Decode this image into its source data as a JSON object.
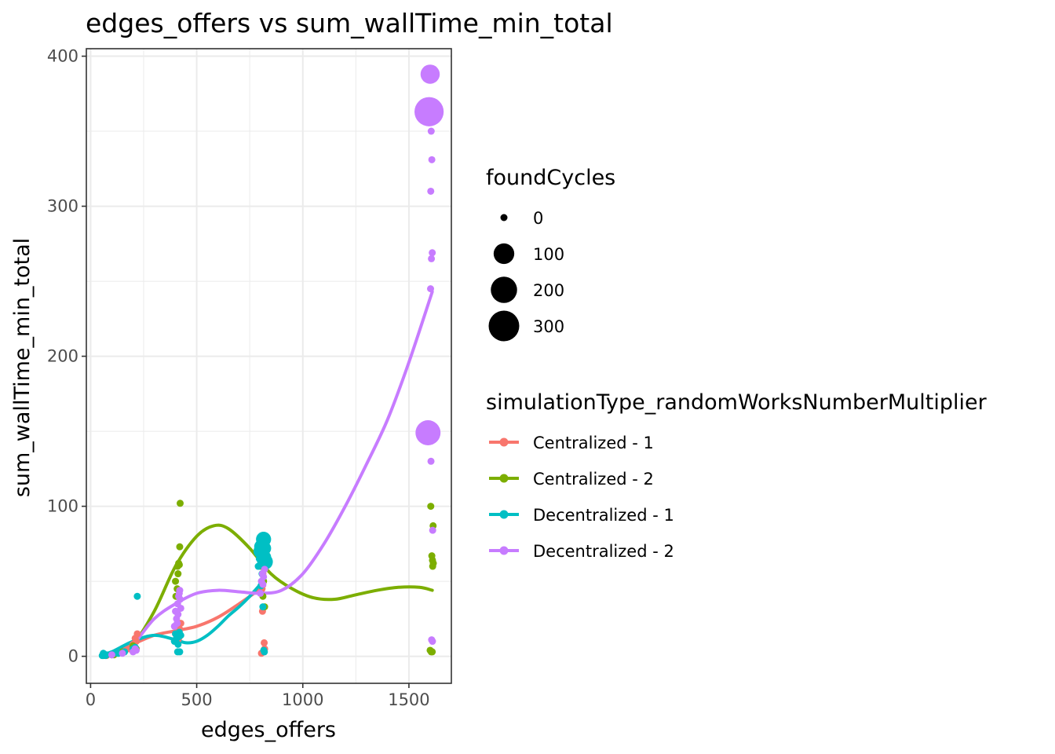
{
  "chart_data": {
    "type": "scatter",
    "title": "edges_offers  vs  sum_wallTime_min_total",
    "xlabel": "edges_offers",
    "ylabel": "sum_wallTime_min_total",
    "xlim": [
      -20,
      1700
    ],
    "ylim": [
      -18,
      405
    ],
    "x_ticks": [
      0,
      500,
      1000,
      1500
    ],
    "y_ticks": [
      0,
      100,
      200,
      300,
      400
    ],
    "grid": true,
    "legend_position": "right",
    "size_legend": {
      "title": "foundCycles",
      "entries": [
        {
          "label": "0",
          "value": 0
        },
        {
          "label": "100",
          "value": 100
        },
        {
          "label": "200",
          "value": 200
        },
        {
          "label": "300",
          "value": 300
        }
      ]
    },
    "color_legend": {
      "title": "simulationType_randomWorksNumberMultiplier"
    },
    "series": [
      {
        "name": "Centralized - 1",
        "color": "#F8766D",
        "points": [
          [
            60,
            1,
            0
          ],
          [
            75,
            0.5,
            0
          ],
          [
            100,
            1,
            0
          ],
          [
            130,
            2,
            0
          ],
          [
            150,
            3,
            0
          ],
          [
            180,
            5,
            0
          ],
          [
            200,
            8,
            0
          ],
          [
            210,
            12,
            0
          ],
          [
            220,
            15,
            0
          ],
          [
            215,
            10,
            0
          ],
          [
            400,
            15,
            0
          ],
          [
            410,
            20,
            0
          ],
          [
            420,
            18,
            0
          ],
          [
            415,
            12,
            0
          ],
          [
            425,
            22,
            0
          ],
          [
            410,
            10,
            0
          ],
          [
            800,
            60,
            0
          ],
          [
            810,
            30,
            0
          ],
          [
            815,
            3,
            0
          ],
          [
            820,
            5,
            0
          ],
          [
            818,
            9,
            0
          ],
          [
            805,
            2,
            0
          ],
          [
            812,
            55,
            0
          ],
          [
            808,
            45,
            0
          ]
        ],
        "smooth": [
          [
            100,
            1
          ],
          [
            200,
            8
          ],
          [
            300,
            14
          ],
          [
            400,
            17
          ],
          [
            500,
            20
          ],
          [
            600,
            26
          ],
          [
            700,
            35
          ],
          [
            800,
            45
          ],
          [
            820,
            47
          ]
        ]
      },
      {
        "name": "Centralized - 2",
        "color": "#7CAE00",
        "points": [
          [
            60,
            0.5,
            0
          ],
          [
            110,
            1,
            0
          ],
          [
            150,
            3,
            0
          ],
          [
            200,
            7,
            0
          ],
          [
            215,
            5,
            0
          ],
          [
            400,
            50,
            0
          ],
          [
            410,
            60,
            0
          ],
          [
            415,
            62,
            0
          ],
          [
            420,
            73,
            0
          ],
          [
            422,
            102,
            0
          ],
          [
            418,
            61,
            0
          ],
          [
            412,
            55,
            0
          ],
          [
            408,
            45,
            0
          ],
          [
            402,
            40,
            0
          ],
          [
            800,
            70,
            0
          ],
          [
            810,
            65,
            0
          ],
          [
            815,
            50,
            0
          ],
          [
            820,
            33,
            0
          ],
          [
            805,
            60,
            0
          ],
          [
            812,
            40,
            0
          ],
          [
            1600,
            4,
            0
          ],
          [
            1605,
            3,
            0
          ],
          [
            1610,
            3,
            0
          ],
          [
            1612,
            60,
            0
          ],
          [
            1615,
            62,
            0
          ],
          [
            1608,
            67,
            0
          ],
          [
            1614,
            87,
            0
          ],
          [
            1603,
            100,
            0
          ],
          [
            1611,
            64,
            0
          ]
        ],
        "smooth": [
          [
            110,
            1
          ],
          [
            200,
            8
          ],
          [
            300,
            30
          ],
          [
            400,
            60
          ],
          [
            500,
            80
          ],
          [
            580,
            87
          ],
          [
            650,
            85
          ],
          [
            750,
            72
          ],
          [
            850,
            55
          ],
          [
            950,
            45
          ],
          [
            1050,
            39
          ],
          [
            1150,
            38
          ],
          [
            1250,
            41
          ],
          [
            1350,
            44
          ],
          [
            1450,
            46
          ],
          [
            1550,
            46
          ],
          [
            1610,
            44
          ]
        ]
      },
      {
        "name": "Decentralized - 1",
        "color": "#00BFC4",
        "points": [
          [
            55,
            0.5,
            0
          ],
          [
            60,
            2,
            0
          ],
          [
            65,
            1,
            0
          ],
          [
            70,
            0.5,
            0
          ],
          [
            75,
            1,
            0
          ],
          [
            100,
            1,
            0
          ],
          [
            110,
            2,
            0
          ],
          [
            130,
            2,
            0
          ],
          [
            160,
            3,
            0
          ],
          [
            200,
            5,
            0
          ],
          [
            210,
            6,
            0
          ],
          [
            220,
            40,
            0
          ],
          [
            395,
            10,
            0
          ],
          [
            400,
            15,
            0
          ],
          [
            405,
            12,
            0
          ],
          [
            410,
            3,
            0
          ],
          [
            415,
            13,
            0
          ],
          [
            420,
            3,
            0
          ],
          [
            425,
            14,
            0
          ],
          [
            412,
            8,
            0
          ],
          [
            418,
            16,
            0
          ],
          [
            790,
            60,
            0
          ],
          [
            795,
            65,
            0
          ],
          [
            800,
            70,
            25
          ],
          [
            805,
            73,
            30
          ],
          [
            810,
            75,
            20
          ],
          [
            815,
            78,
            35
          ],
          [
            818,
            72,
            25
          ],
          [
            820,
            66,
            20
          ],
          [
            822,
            63,
            40
          ],
          [
            808,
            55,
            0
          ],
          [
            812,
            33,
            0
          ],
          [
            816,
            4,
            0
          ],
          [
            819,
            3,
            0
          ],
          [
            803,
            47,
            0
          ]
        ],
        "smooth": [
          [
            55,
            1
          ],
          [
            100,
            3
          ],
          [
            200,
            10
          ],
          [
            300,
            14
          ],
          [
            400,
            11
          ],
          [
            450,
            9
          ],
          [
            500,
            10
          ],
          [
            550,
            14
          ],
          [
            600,
            20
          ],
          [
            650,
            27
          ],
          [
            700,
            33
          ],
          [
            750,
            40
          ],
          [
            800,
            48
          ],
          [
            822,
            51
          ]
        ]
      },
      {
        "name": "Decentralized - 2",
        "color": "#C77CFF",
        "points": [
          [
            100,
            1,
            0
          ],
          [
            150,
            2,
            0
          ],
          [
            200,
            3,
            0
          ],
          [
            210,
            5,
            0
          ],
          [
            215,
            4,
            0
          ],
          [
            395,
            20,
            0
          ],
          [
            400,
            30,
            0
          ],
          [
            405,
            25,
            0
          ],
          [
            410,
            35,
            0
          ],
          [
            412,
            28,
            0
          ],
          [
            415,
            40,
            0
          ],
          [
            418,
            42,
            0
          ],
          [
            420,
            44,
            0
          ],
          [
            422,
            38,
            0
          ],
          [
            425,
            32,
            0
          ],
          [
            408,
            22,
            0
          ],
          [
            800,
            42,
            0
          ],
          [
            805,
            50,
            0
          ],
          [
            810,
            55,
            0
          ],
          [
            815,
            53,
            0
          ],
          [
            820,
            58,
            0
          ],
          [
            812,
            48,
            0
          ],
          [
            1590,
            149,
            175
          ],
          [
            1595,
            363,
            265
          ],
          [
            1600,
            388,
            80
          ],
          [
            1605,
            350,
            0
          ],
          [
            1608,
            331,
            0
          ],
          [
            1603,
            310,
            0
          ],
          [
            1610,
            269,
            0
          ],
          [
            1606,
            265,
            0
          ],
          [
            1602,
            245,
            0
          ],
          [
            1604,
            130,
            0
          ],
          [
            1612,
            84,
            0
          ],
          [
            1607,
            11,
            0
          ],
          [
            1611,
            10,
            0
          ]
        ],
        "smooth": [
          [
            120,
            1
          ],
          [
            200,
            8
          ],
          [
            300,
            25
          ],
          [
            400,
            35
          ],
          [
            500,
            42
          ],
          [
            600,
            44
          ],
          [
            700,
            43
          ],
          [
            800,
            42
          ],
          [
            900,
            44
          ],
          [
            1000,
            55
          ],
          [
            1100,
            75
          ],
          [
            1200,
            100
          ],
          [
            1300,
            128
          ],
          [
            1400,
            158
          ],
          [
            1500,
            196
          ],
          [
            1610,
            243
          ]
        ]
      }
    ]
  }
}
